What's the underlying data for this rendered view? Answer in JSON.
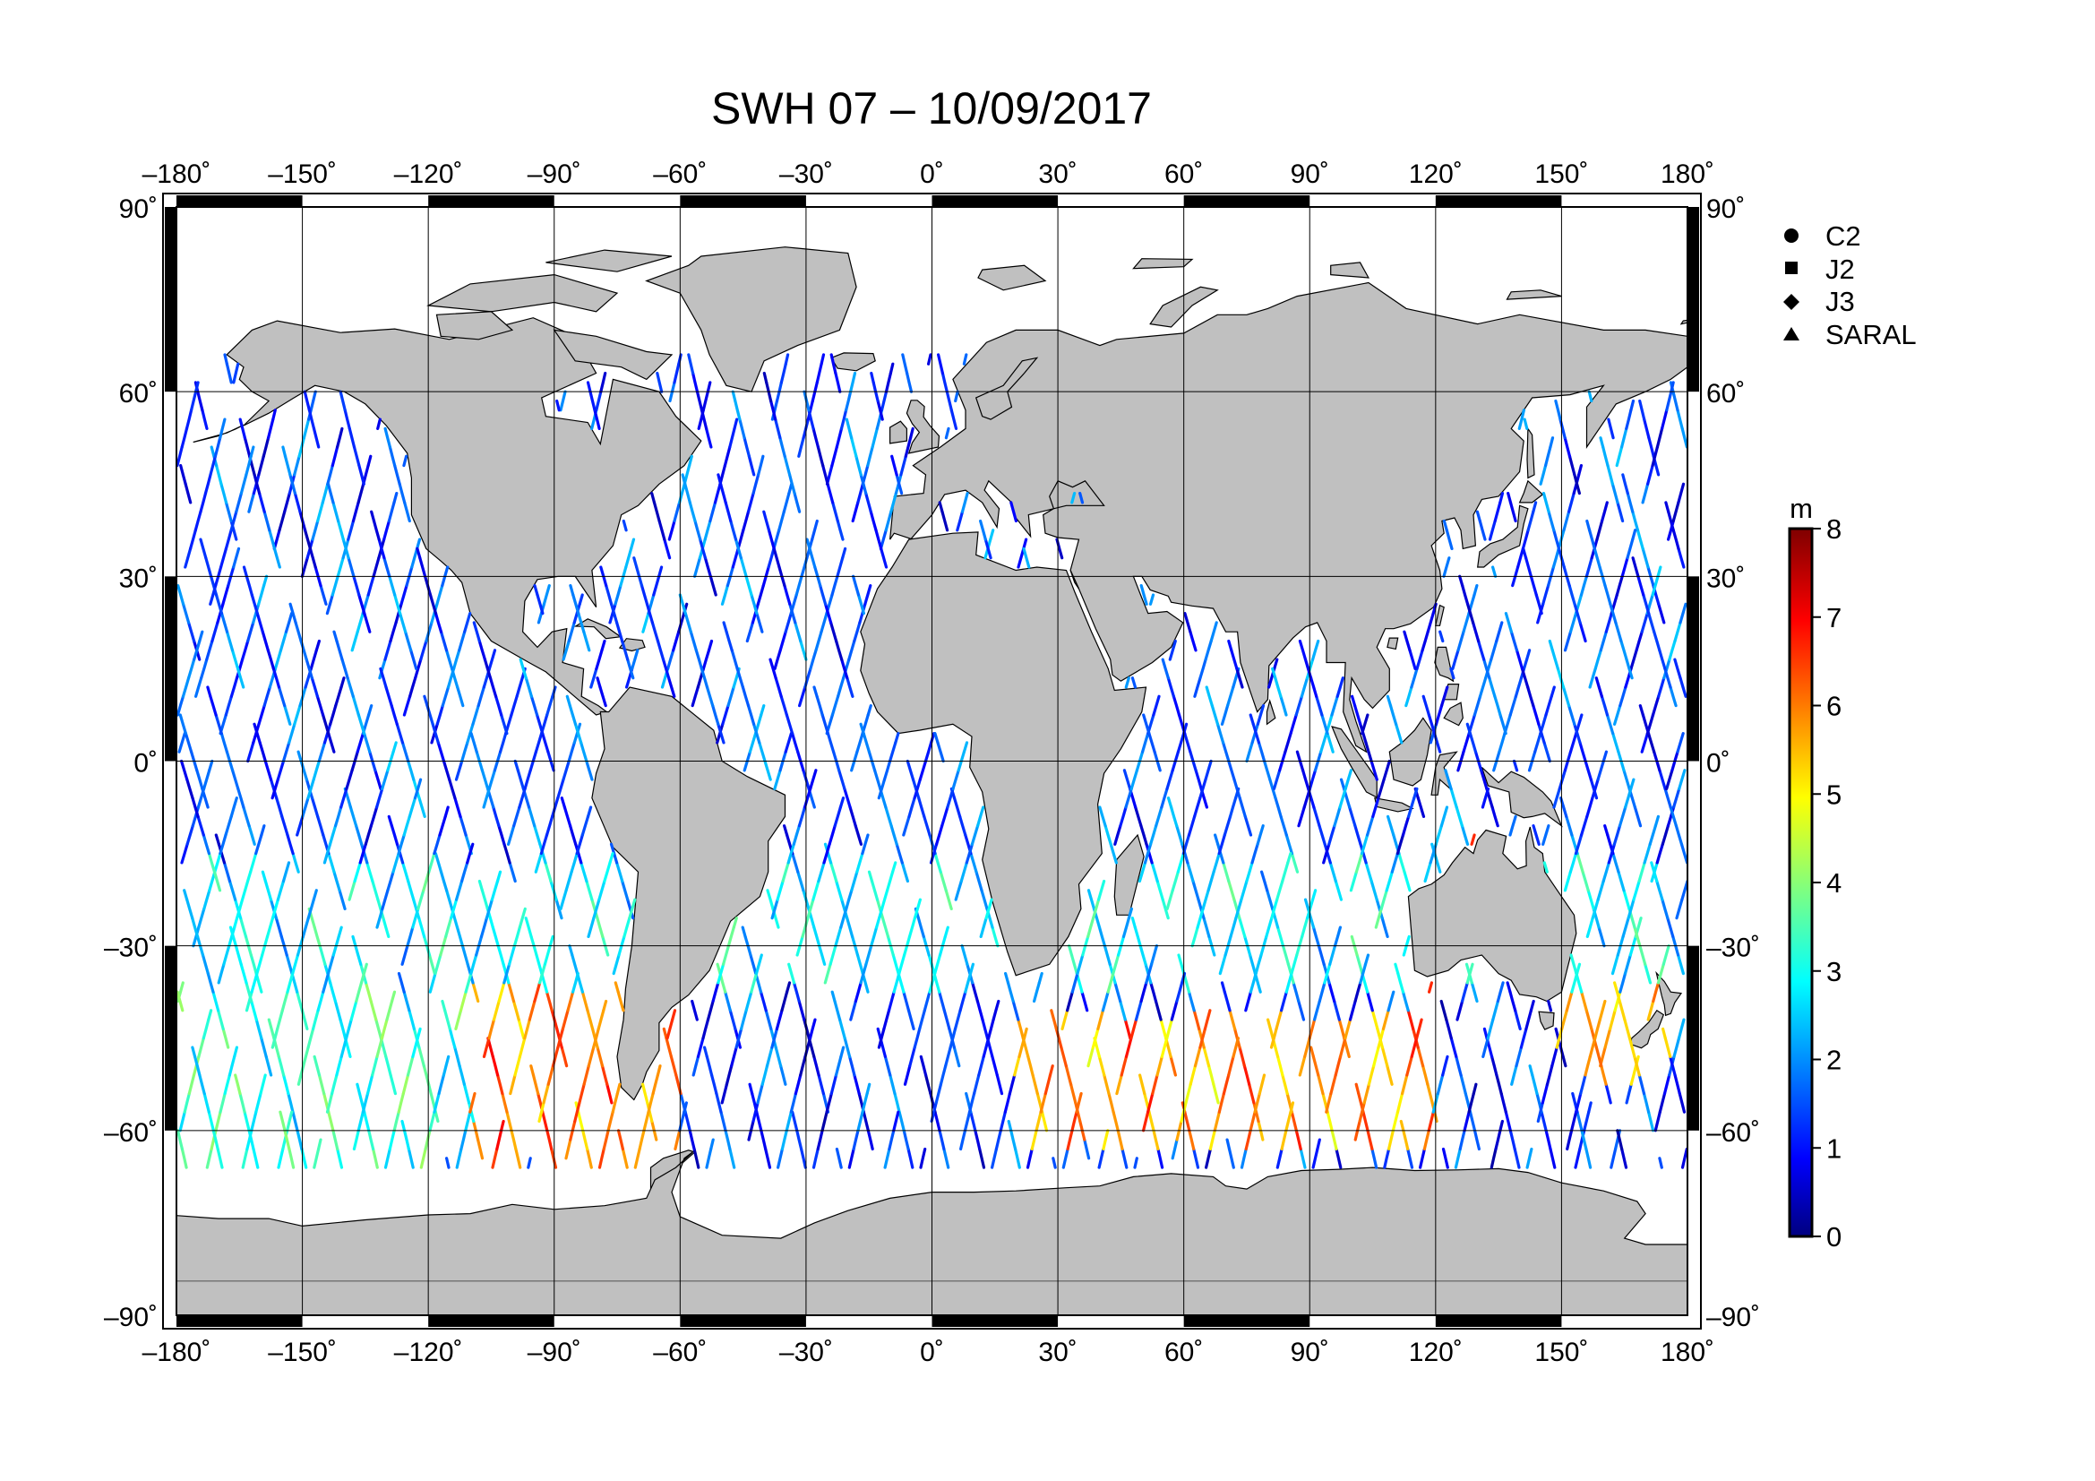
{
  "title": "SWH 07 – 10/09/2017",
  "map": {
    "projection": "equirectangular",
    "lon_range": [
      -180,
      180
    ],
    "lat_range": [
      -90,
      90
    ],
    "land_color": "#c0c0c0",
    "ocean_color": "#ffffff",
    "grid": true,
    "lon_ticks": [
      {
        "value": -180,
        "label": "–180˚"
      },
      {
        "value": -150,
        "label": "–150˚"
      },
      {
        "value": -120,
        "label": "–120˚"
      },
      {
        "value": -90,
        "label": "–90˚"
      },
      {
        "value": -60,
        "label": "–60˚"
      },
      {
        "value": -30,
        "label": "–30˚"
      },
      {
        "value": 0,
        "label": "0˚"
      },
      {
        "value": 30,
        "label": "30˚"
      },
      {
        "value": 60,
        "label": "60˚"
      },
      {
        "value": 90,
        "label": "90˚"
      },
      {
        "value": 120,
        "label": "120˚"
      },
      {
        "value": 150,
        "label": "150˚"
      },
      {
        "value": 180,
        "label": "180˚"
      }
    ],
    "lat_ticks_left": [
      {
        "value": 90,
        "label": "90˚"
      },
      {
        "value": 60,
        "label": "60˚"
      },
      {
        "value": 30,
        "label": "30˚"
      },
      {
        "value": 0,
        "label": "0˚"
      },
      {
        "value": -30,
        "label": "–30˚"
      },
      {
        "value": -60,
        "label": "–60˚"
      },
      {
        "value": -90,
        "label": "–90˚"
      }
    ],
    "lat_ticks_right": [
      {
        "value": 90,
        "label": "90˚"
      },
      {
        "value": 60,
        "label": "60˚"
      },
      {
        "value": 30,
        "label": "30˚"
      },
      {
        "value": 0,
        "label": "0˚"
      },
      {
        "value": -30,
        "label": "–30˚"
      },
      {
        "value": -60,
        "label": "–60˚"
      },
      {
        "value": -90,
        "label": "–90˚"
      }
    ]
  },
  "legend": {
    "items": [
      {
        "symbol": "circle",
        "label": "C2"
      },
      {
        "symbol": "square",
        "label": "J2"
      },
      {
        "symbol": "diamond",
        "label": "J3"
      },
      {
        "symbol": "triangle",
        "label": "SARAL"
      }
    ]
  },
  "colorbar": {
    "unit": "m",
    "min": 0,
    "max": 8,
    "tick_labels": [
      "0",
      "1",
      "2",
      "3",
      "4",
      "5",
      "6",
      "7",
      "8"
    ],
    "colormap": "jet"
  },
  "chart_data": {
    "type": "scatter",
    "title": "SWH 07 – 10/09/2017",
    "xlabel": "",
    "ylabel": "",
    "xlim": [
      -180,
      180
    ],
    "ylim": [
      -90,
      90
    ],
    "value_unit": "m",
    "value_range": [
      0,
      8
    ],
    "series": [
      {
        "name": "C2",
        "points": []
      },
      {
        "name": "J2",
        "points": []
      },
      {
        "name": "J3",
        "points": []
      },
      {
        "name": "SARAL",
        "points": []
      }
    ],
    "regional_swh_estimates": [
      {
        "lon_range": [
          -180,
          180
        ],
        "lat_range": [
          30,
          66
        ],
        "swh_m": 1.5
      },
      {
        "lon_range": [
          -180,
          180
        ],
        "lat_range": [
          -15,
          30
        ],
        "swh_m": 1.6
      },
      {
        "lon_range": [
          -180,
          180
        ],
        "lat_range": [
          -35,
          -15
        ],
        "swh_m": 2.8
      },
      {
        "lon_range": [
          -110,
          -60
        ],
        "lat_range": [
          -65,
          -35
        ],
        "swh_m": 6.0
      },
      {
        "lon_range": [
          20,
          120
        ],
        "lat_range": [
          -60,
          -40
        ],
        "swh_m": 5.8
      },
      {
        "lon_range": [
          150,
          175
        ],
        "lat_range": [
          -50,
          -35
        ],
        "swh_m": 5.5
      },
      {
        "lon_range": [
          -180,
          -110
        ],
        "lat_range": [
          -65,
          -35
        ],
        "swh_m": 3.3
      }
    ]
  }
}
